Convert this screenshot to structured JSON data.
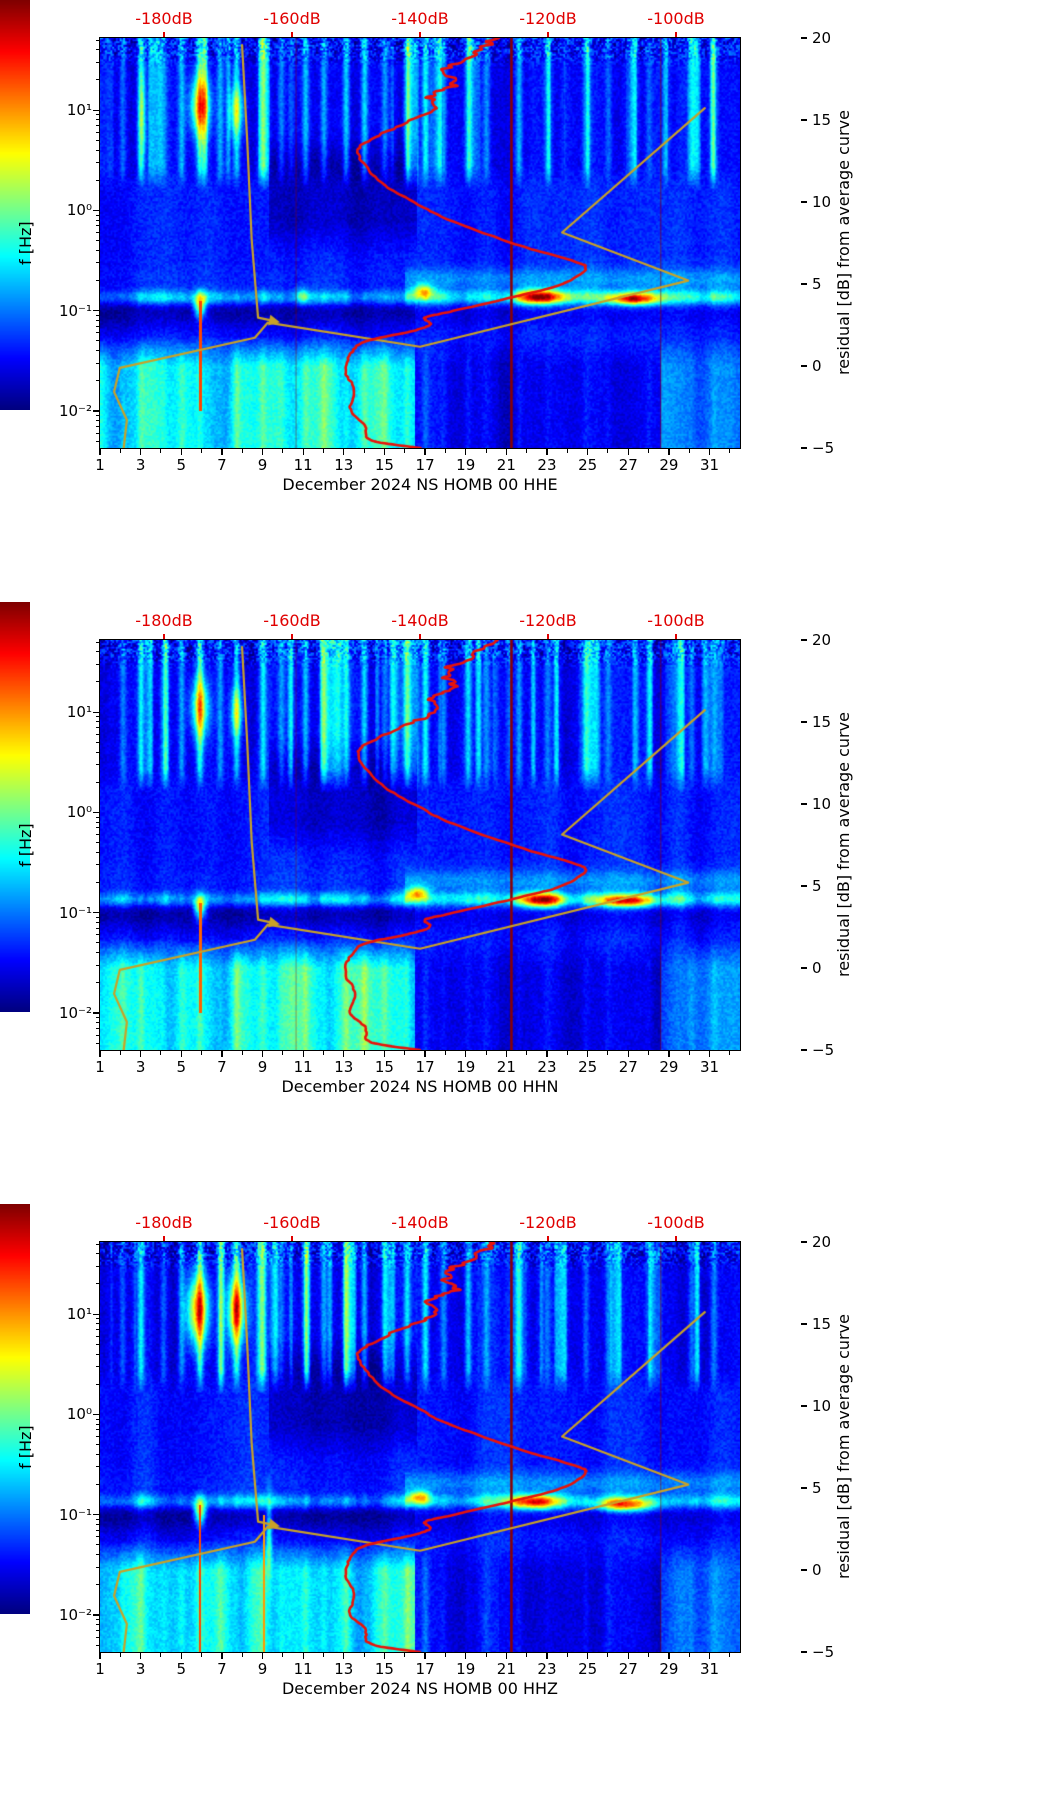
{
  "figure": {
    "background": "#ffffff"
  },
  "chart_data": {
    "type": "heatmap",
    "description": "Three stacked PSD residual spectrograms (channels HHE, HHN, HHZ) of station NS HOMB 00 for December 2024, with red average PSD curve and yellow reference curves, jet colormap",
    "x_axis": {
      "ticks": [
        "1",
        "3",
        "5",
        "7",
        "9",
        "11",
        "13",
        "15",
        "17",
        "19",
        "21",
        "23",
        "25",
        "27",
        "29",
        "31"
      ],
      "tick_values": [
        1,
        3,
        5,
        7,
        9,
        11,
        13,
        15,
        17,
        19,
        21,
        23,
        25,
        27,
        29,
        31
      ],
      "range_days": [
        1,
        32.5
      ],
      "unit": "day of December 2024"
    },
    "y_axis": {
      "label": "f [Hz]",
      "scale": "log",
      "tick_labels": [
        "10¹",
        "10⁰",
        "10⁻¹",
        "10⁻²"
      ],
      "tick_exponents": [
        1,
        0,
        -1,
        -2
      ],
      "log_range": [
        -2.37,
        1.72
      ]
    },
    "top_axis": {
      "labels": [
        "-180dB",
        "-160dB",
        "-140dB",
        "-120dB",
        "-100dB"
      ],
      "values_db": [
        -180,
        -160,
        -140,
        -120,
        -100
      ],
      "db_range": [
        -190,
        -90
      ],
      "color": "#e00000"
    },
    "colorbar": {
      "label": "residual [dB] from average curve",
      "ticks": [
        "20",
        "15",
        "10",
        "5",
        "0",
        "−5"
      ],
      "tick_values": [
        20,
        15,
        10,
        5,
        0,
        -5
      ],
      "range": [
        -5,
        20
      ],
      "colormap": "jet"
    },
    "curves": {
      "average_psd_red": {
        "color": "#e81309",
        "width": 2.6,
        "smooth": true,
        "wiggle": true,
        "points_db_logf": [
          [
            -128.0,
            1.72
          ],
          [
            -132.2,
            1.55
          ],
          [
            -136.1,
            1.4
          ],
          [
            -134.5,
            1.25
          ],
          [
            -138.4,
            1.15
          ],
          [
            -137.7,
            1.0
          ],
          [
            -143.1,
            0.85
          ],
          [
            -147.8,
            0.7
          ],
          [
            -149.7,
            0.6
          ],
          [
            -148.6,
            0.45
          ],
          [
            -145.5,
            0.25
          ],
          [
            -140.0,
            0.05
          ],
          [
            -135.3,
            -0.1
          ],
          [
            -124.4,
            -0.35
          ],
          [
            -115.8,
            -0.51
          ],
          [
            -114.2,
            -0.59
          ],
          [
            -118.1,
            -0.74
          ],
          [
            -125.9,
            -0.87
          ],
          [
            -135.3,
            -1.01
          ],
          [
            -139.2,
            -1.07
          ],
          [
            -138.4,
            -1.14
          ],
          [
            -141.6,
            -1.21
          ],
          [
            -148.6,
            -1.31
          ],
          [
            -150.9,
            -1.44
          ],
          [
            -151.7,
            -1.61
          ],
          [
            -150.2,
            -1.79
          ],
          [
            -150.9,
            -1.99
          ],
          [
            -148.6,
            -2.14
          ],
          [
            -147.7,
            -2.29
          ],
          [
            -140.0,
            -2.37
          ]
        ]
      },
      "reference_yellow_main": {
        "color": "#c9a227",
        "width": 2.2,
        "smooth": false,
        "wiggle": false,
        "points_db_logf": [
          [
            -95.5,
            1.02
          ],
          [
            -117.8,
            -0.22
          ],
          [
            -98.1,
            -0.7
          ],
          [
            -140.0,
            -1.36
          ],
          [
            -163.8,
            -1.12
          ],
          [
            -165.8,
            -1.27
          ],
          [
            -186.9,
            -1.57
          ],
          [
            -187.8,
            -1.81
          ],
          [
            -185.8,
            -2.09
          ],
          [
            -186.3,
            -2.37
          ]
        ]
      },
      "reference_yellow_branch": {
        "color": "#c9a227",
        "width": 2.2,
        "smooth": false,
        "wiggle": false,
        "arrow_end": true,
        "points_db_logf": [
          [
            -167.8,
            1.65
          ],
          [
            -167.0,
            0.7
          ],
          [
            -166.3,
            -0.29
          ],
          [
            -165.3,
            -1.07
          ],
          [
            -163.1,
            -1.1
          ]
        ]
      }
    },
    "event_stripes_day_amp": [
      [
        2.1,
        3.5
      ],
      [
        3.0,
        6.5
      ],
      [
        4.1,
        3.5
      ],
      [
        5.0,
        4.5
      ],
      [
        5.9,
        7.5
      ],
      [
        6.9,
        4.5
      ],
      [
        7.7,
        6.5
      ],
      [
        9.0,
        6.0
      ],
      [
        9.9,
        3.5
      ],
      [
        11.1,
        5.5
      ],
      [
        12.0,
        5.0
      ],
      [
        13.1,
        6.5
      ],
      [
        14.0,
        6.0
      ],
      [
        15.0,
        4.0
      ],
      [
        16.1,
        6.0
      ],
      [
        17.0,
        6.5
      ],
      [
        17.9,
        4.0
      ],
      [
        19.1,
        6.0
      ],
      [
        20.0,
        4.0
      ],
      [
        21.6,
        5.0
      ],
      [
        23.0,
        3.0
      ],
      [
        24.9,
        3.5
      ],
      [
        26.0,
        3.0
      ],
      [
        28.0,
        2.5
      ],
      [
        30.1,
        3.5
      ],
      [
        31.2,
        3.5
      ]
    ],
    "panels": [
      {
        "title": "December 2024 NS HOMB 00 HHE",
        "seed": 7,
        "hotspots": [
          [
            5.9,
            1.05,
            0.5,
            0.3,
            12
          ],
          [
            7.7,
            1.0,
            0.35,
            0.25,
            8
          ],
          [
            3.05,
            0.95,
            0.2,
            0.45,
            5
          ],
          [
            22.6,
            -0.86,
            1.2,
            0.07,
            15
          ],
          [
            27.2,
            -0.88,
            1.2,
            0.06,
            14
          ],
          [
            16.9,
            -0.8,
            0.5,
            0.07,
            9
          ],
          [
            5.9,
            -0.95,
            0.3,
            0.12,
            11
          ],
          [
            10.9,
            -0.85,
            0.3,
            0.08,
            6
          ]
        ],
        "vlines_day_width_alpha": [
          [
            21.25,
            2.5,
            1.0
          ],
          [
            28.6,
            1.2,
            0.55
          ],
          [
            10.65,
            1.2,
            0.4
          ]
        ],
        "partial_vlines": [
          [
            5.92,
            -2.0,
            -0.9,
            0.8
          ]
        ]
      },
      {
        "title": "December 2024 NS HOMB 00 HHN",
        "seed": 13,
        "hotspots": [
          [
            5.9,
            1.05,
            0.45,
            0.3,
            11
          ],
          [
            7.7,
            1.0,
            0.3,
            0.25,
            8
          ],
          [
            22.7,
            -0.87,
            1.1,
            0.07,
            15
          ],
          [
            26.9,
            -0.88,
            1.4,
            0.06,
            13
          ],
          [
            16.6,
            -0.8,
            0.5,
            0.07,
            10
          ],
          [
            5.9,
            -0.95,
            0.3,
            0.12,
            11
          ]
        ],
        "vlines_day_width_alpha": [
          [
            21.25,
            2.5,
            1.0
          ],
          [
            28.6,
            1.2,
            0.5
          ],
          [
            10.65,
            1.2,
            0.35
          ]
        ],
        "partial_vlines": [
          [
            5.92,
            -2.0,
            -0.9,
            0.75
          ]
        ]
      },
      {
        "title": "December 2024 NS HOMB 00 HHZ",
        "seed": 29,
        "hotspots": [
          [
            5.8,
            1.05,
            0.55,
            0.35,
            15
          ],
          [
            7.7,
            1.05,
            0.45,
            0.33,
            14
          ],
          [
            22.4,
            -0.87,
            1.1,
            0.07,
            14
          ],
          [
            26.8,
            -0.9,
            1.3,
            0.06,
            12
          ],
          [
            16.7,
            -0.82,
            0.5,
            0.07,
            10
          ],
          [
            5.9,
            -0.97,
            0.3,
            0.13,
            12
          ],
          [
            9.3,
            -1.2,
            0.15,
            0.4,
            7
          ]
        ],
        "vlines_day_width_alpha": [
          [
            21.25,
            2.5,
            1.0
          ],
          [
            28.6,
            1.2,
            0.5
          ]
        ],
        "partial_vlines": [
          [
            5.9,
            -2.37,
            -0.9,
            0.8
          ],
          [
            9.05,
            -2.37,
            -1.0,
            0.65
          ]
        ]
      }
    ]
  }
}
